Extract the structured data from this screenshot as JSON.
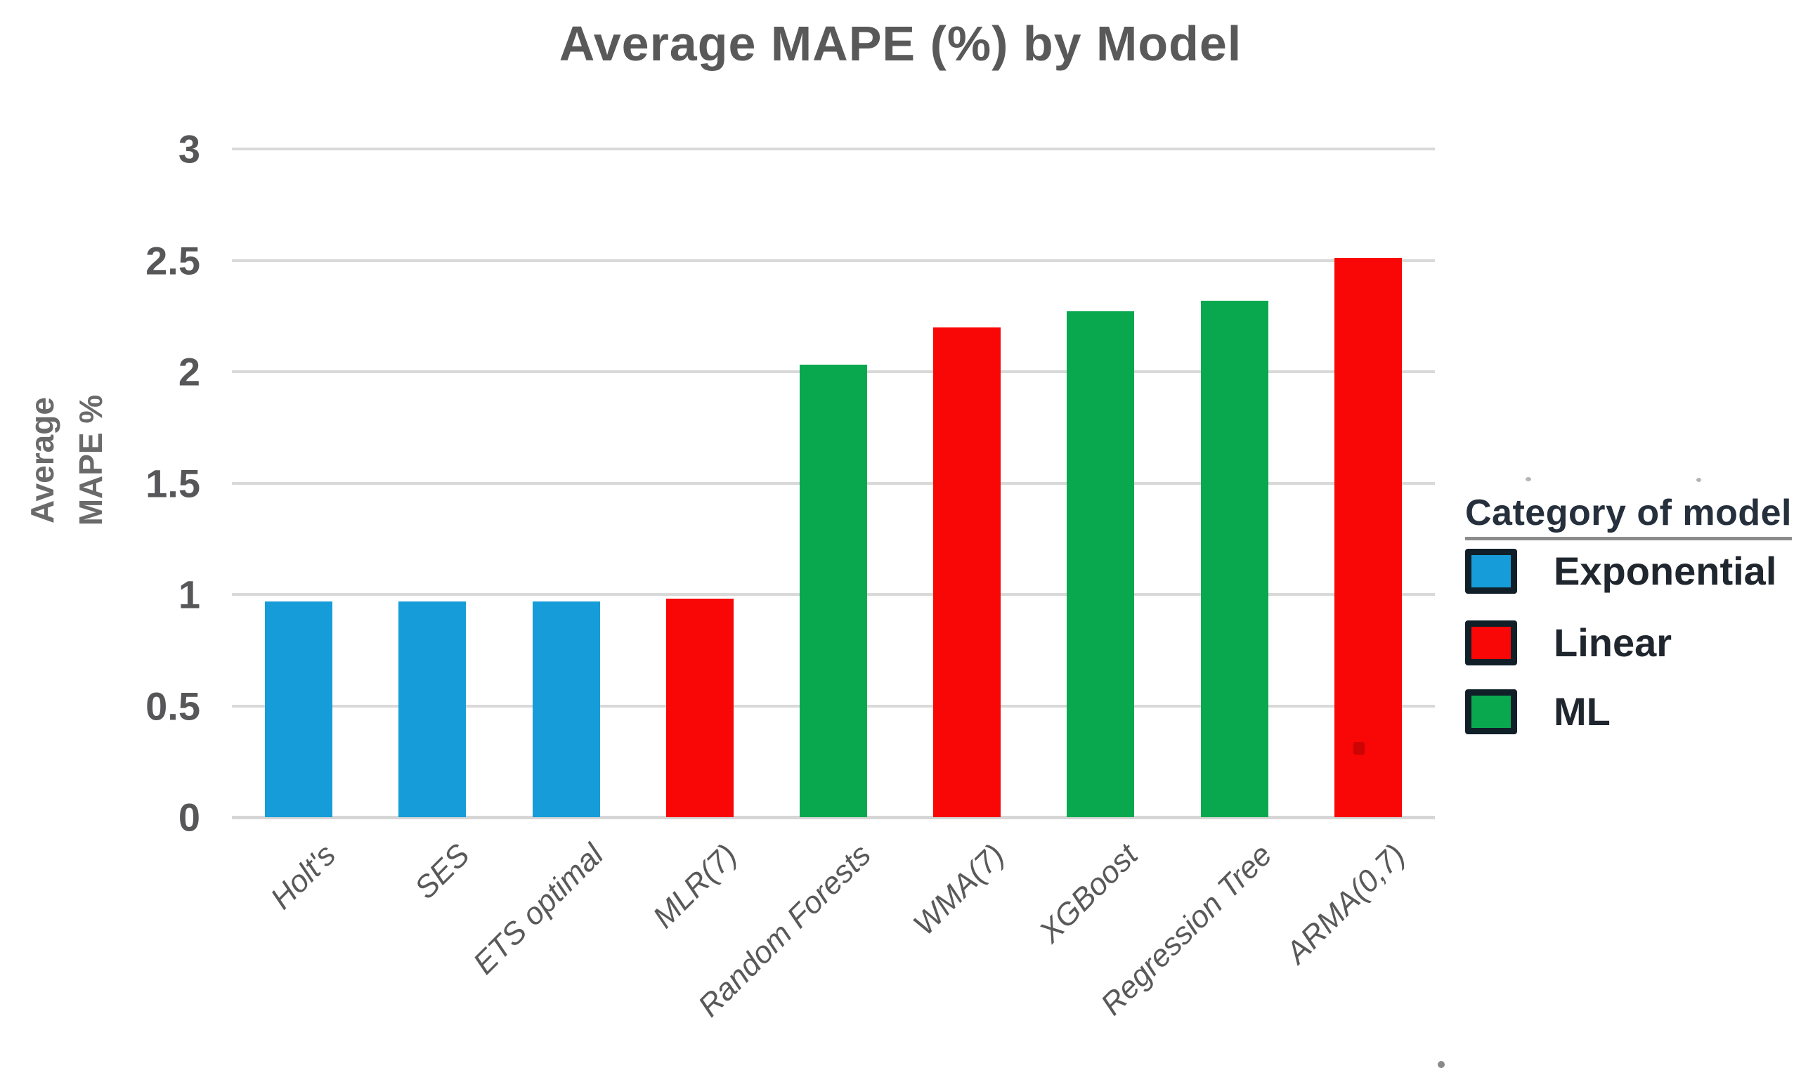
{
  "title": "Average MAPE (%) by Model",
  "y_axis": {
    "title_line1": "Average",
    "title_line2": "MAPE %",
    "tick_labels": [
      "0",
      "0.5",
      "1",
      "1.5",
      "2",
      "2.5",
      "3"
    ]
  },
  "legend": {
    "title": "Category of model",
    "items": [
      {
        "label": "Exponential",
        "color": "#169cd8"
      },
      {
        "label": "Linear",
        "color": "#f90606"
      },
      {
        "label": "ML",
        "color": "#0aa84e"
      }
    ]
  },
  "chart_data": {
    "type": "bar",
    "title": "Average MAPE (%) by Model",
    "categories": [
      "Holt's",
      "SES",
      "ETS optimal",
      "MLR(7)",
      "Random Forests",
      "WMA(7)",
      "XGBoost",
      "Regression Tree",
      "ARMA(0,7)"
    ],
    "values": [
      0.97,
      0.97,
      0.97,
      0.98,
      2.03,
      2.2,
      2.27,
      2.32,
      2.51
    ],
    "bar_categories": [
      "Exponential",
      "Exponential",
      "Exponential",
      "Linear",
      "ML",
      "Linear",
      "ML",
      "ML",
      "Linear"
    ],
    "category_colors": {
      "Exponential": "#169cd8",
      "Linear": "#f90606",
      "ML": "#0aa84e"
    },
    "xlabel": "",
    "ylabel": "Average MAPE %",
    "ylim": [
      0,
      3
    ],
    "ytick_step": 0.5,
    "grid": true,
    "legend_position": "right",
    "legend_title": "Category of model"
  }
}
